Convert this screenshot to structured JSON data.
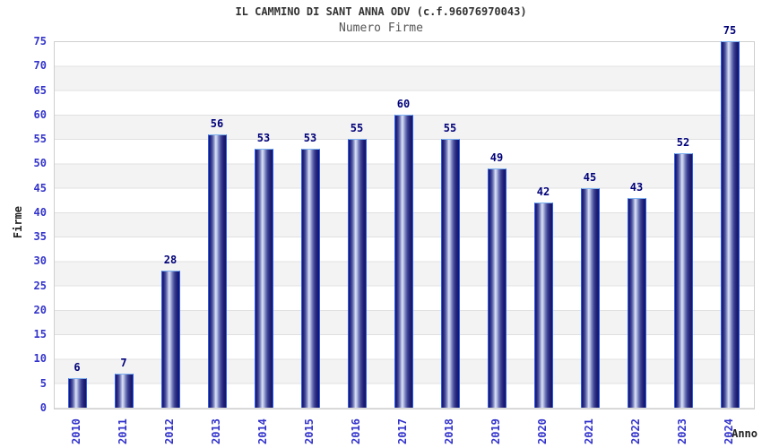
{
  "header": {
    "title": "IL CAMMINO DI SANT ANNA ODV (c.f.96076970043)",
    "subtitle": "Numero Firme"
  },
  "chart_data": {
    "type": "bar",
    "title": "IL CAMMINO DI SANT ANNA ODV (c.f.96076970043)",
    "subtitle": "Numero Firme",
    "xlabel": "Anno",
    "ylabel": "Firme",
    "categories": [
      "2010",
      "2011",
      "2012",
      "2013",
      "2014",
      "2015",
      "2016",
      "2017",
      "2018",
      "2019",
      "2020",
      "2021",
      "2022",
      "2023",
      "2024"
    ],
    "values": [
      6,
      7,
      28,
      56,
      53,
      53,
      55,
      60,
      55,
      49,
      42,
      45,
      43,
      52,
      75
    ],
    "ylim": [
      0,
      75
    ],
    "ytick_step": 5,
    "grid": true,
    "legend": "none",
    "colors": {
      "bar_dark": "#171769",
      "bar_highlight": "#dde2f4",
      "bar_border": "#2b5cf0",
      "bar_top_border": "#7fb2f0",
      "tick_label": "#3333cc",
      "value_label": "#00007a",
      "band_gray": "#f3f3f3",
      "gridline": "#e0e0e0",
      "plot_border": "#cfcfcf",
      "title_text": "#333333",
      "subtitle_text": "#555555"
    }
  }
}
